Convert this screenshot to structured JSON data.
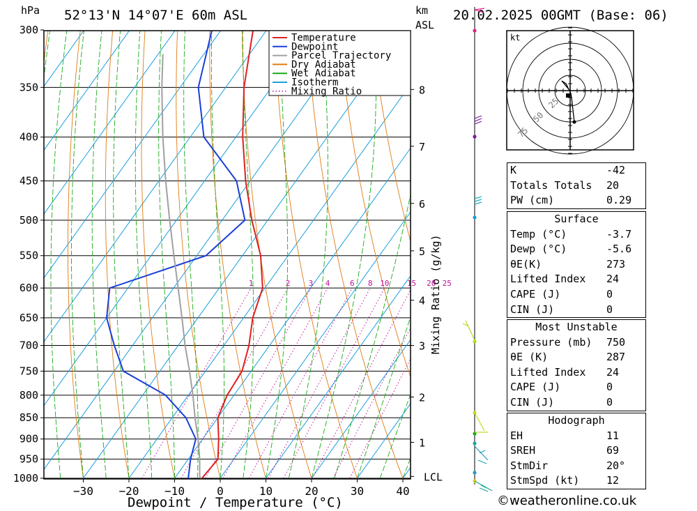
{
  "header": {
    "pressure_unit": "hPa",
    "location": "52°13'N 14°07'E 60m ASL",
    "height_unit_top": "km",
    "height_unit_bottom": "ASL",
    "datetime": "20.02.2025 00GMT (Base: 06)"
  },
  "legend": {
    "items": [
      {
        "label": "Temperature",
        "color": "#e02020",
        "style": "solid"
      },
      {
        "label": "Dewpoint",
        "color": "#1a3fd8",
        "style": "solid"
      },
      {
        "label": "Parcel Trajectory",
        "color": "#a0a0a0",
        "style": "solid"
      },
      {
        "label": "Dry Adiabat",
        "color": "#e07a10",
        "style": "solid"
      },
      {
        "label": "Wet Adiabat",
        "color": "#1aaa1a",
        "style": "solid"
      },
      {
        "label": "Isotherm",
        "color": "#1a9ee0",
        "style": "solid"
      },
      {
        "label": "Mixing Ratio",
        "color": "#c0109a",
        "style": "dotted"
      }
    ]
  },
  "chart_data": {
    "type": "line",
    "subtype": "skew-T log-p",
    "xlabel": "Dewpoint / Temperature (°C)",
    "ylabel": "hPa",
    "x_ticks": [
      -30,
      -20,
      -10,
      0,
      10,
      20,
      30,
      40
    ],
    "pressure_ticks": [
      300,
      350,
      400,
      450,
      500,
      550,
      600,
      650,
      700,
      750,
      800,
      850,
      900,
      950,
      1000
    ],
    "height_ticks_km": [
      {
        "label": "8",
        "p": 352
      },
      {
        "label": "7",
        "p": 410
      },
      {
        "label": "6",
        "p": 478
      },
      {
        "label": "5",
        "p": 543
      },
      {
        "label": "4",
        "p": 620
      },
      {
        "label": "3",
        "p": 700
      },
      {
        "label": "2",
        "p": 804
      },
      {
        "label": "1",
        "p": 908
      },
      {
        "label": "LCL",
        "p": 995
      }
    ],
    "mixing_ratio_label": "Mixing Ratio (g/kg)",
    "mixing_ratio_values": [
      "1",
      "2",
      "3",
      "4",
      "6",
      "8",
      "10",
      "15",
      "20",
      "25"
    ],
    "series": [
      {
        "name": "Temperature",
        "color": "#e02020",
        "points": [
          [
            1005,
            -3.7
          ],
          [
            1000,
            -4.0
          ],
          [
            950,
            -3.5
          ],
          [
            900,
            -6.5
          ],
          [
            850,
            -10.0
          ],
          [
            800,
            -11.5
          ],
          [
            750,
            -12.0
          ],
          [
            700,
            -14.5
          ],
          [
            650,
            -18.0
          ],
          [
            600,
            -20.5
          ],
          [
            550,
            -26.0
          ],
          [
            500,
            -33.5
          ],
          [
            450,
            -41.0
          ],
          [
            400,
            -48.5
          ],
          [
            350,
            -56.0
          ],
          [
            300,
            -63.0
          ]
        ]
      },
      {
        "name": "Dewpoint",
        "color": "#1a3fd8",
        "points": [
          [
            1005,
            -5.6
          ],
          [
            1000,
            -7.0
          ],
          [
            950,
            -9.5
          ],
          [
            900,
            -11.5
          ],
          [
            850,
            -17.0
          ],
          [
            800,
            -25.0
          ],
          [
            750,
            -38.0
          ],
          [
            700,
            -44.0
          ],
          [
            650,
            -50.0
          ],
          [
            600,
            -54.0
          ],
          [
            550,
            -38.0
          ],
          [
            500,
            -35.0
          ],
          [
            450,
            -43.0
          ],
          [
            400,
            -57.0
          ],
          [
            350,
            -66.0
          ],
          [
            300,
            -72.0
          ]
        ]
      },
      {
        "name": "Parcel Trajectory",
        "color": "#a0a0a0",
        "points": [
          [
            1005,
            -3.7
          ],
          [
            995,
            -4.8
          ],
          [
            950,
            -7.5
          ],
          [
            900,
            -11.0
          ],
          [
            850,
            -15.0
          ],
          [
            800,
            -19.0
          ],
          [
            750,
            -23.5
          ],
          [
            700,
            -28.5
          ],
          [
            650,
            -33.5
          ],
          [
            600,
            -39.0
          ],
          [
            550,
            -45.0
          ],
          [
            500,
            -51.5
          ],
          [
            450,
            -58.5
          ],
          [
            400,
            -66.0
          ],
          [
            350,
            -74.0
          ],
          [
            320,
            -79.0
          ]
        ]
      }
    ]
  },
  "hodograph": {
    "unit": "kt",
    "ring_labels": [
      "25",
      "50",
      "75"
    ]
  },
  "indices": {
    "k_label": "K",
    "k_value": "-42",
    "tt_label": "Totals Totals",
    "tt_value": "20",
    "pw_label": "PW (cm)",
    "pw_value": "0.29"
  },
  "surface": {
    "title": "Surface",
    "rows": [
      {
        "label": "Temp (°C)",
        "value": "-3.7"
      },
      {
        "label": "Dewp (°C)",
        "value": "-5.6"
      },
      {
        "label": "θE(K)",
        "value": "273"
      },
      {
        "label": "Lifted Index",
        "value": "24"
      },
      {
        "label": "CAPE (J)",
        "value": "0"
      },
      {
        "label": "CIN (J)",
        "value": "0"
      }
    ]
  },
  "most_unstable": {
    "title": "Most Unstable",
    "rows": [
      {
        "label": "Pressure (mb)",
        "value": "750"
      },
      {
        "label": "θE (K)",
        "value": "287"
      },
      {
        "label": "Lifted Index",
        "value": "24"
      },
      {
        "label": "CAPE (J)",
        "value": "0"
      },
      {
        "label": "CIN (J)",
        "value": "0"
      }
    ]
  },
  "hodograph_stats": {
    "title": "Hodograph",
    "rows": [
      {
        "label": "EH",
        "value": "11"
      },
      {
        "label": "SREH",
        "value": "69"
      },
      {
        "label": "StmDir",
        "value": "20°"
      },
      {
        "label": "StmSpd (kt)",
        "value": "12"
      }
    ]
  },
  "credit": "©weatheronline.co.uk"
}
